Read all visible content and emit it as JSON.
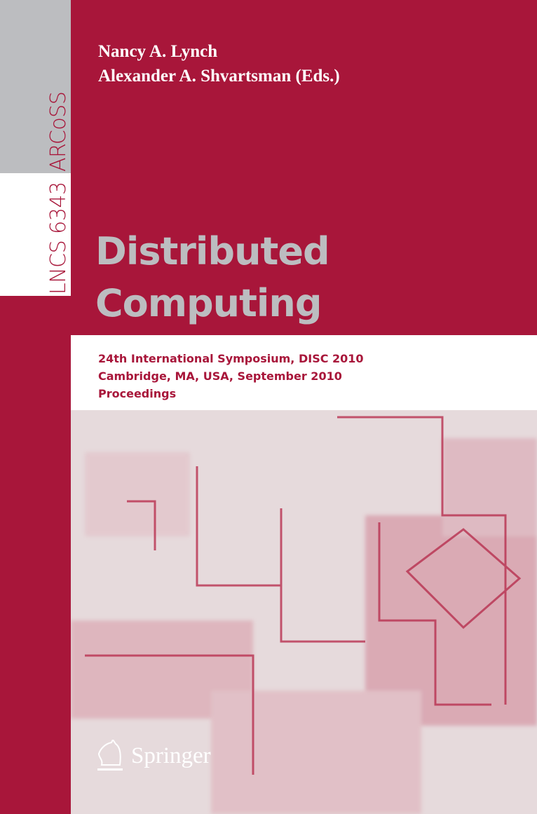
{
  "series_strip": {
    "arcoss": "ARCoSS",
    "lncs": "LNCS 6343"
  },
  "editors": [
    "Nancy A. Lynch",
    "Alexander A. Shvartsman (Eds.)"
  ],
  "title": [
    "Distributed",
    "Computing"
  ],
  "subtitle": [
    "24th International Symposium, DISC 2010",
    "Cambridge, MA, USA, September 2010",
    "Proceedings"
  ],
  "publisher": {
    "name": "Springer",
    "logo_icon": "knight-horse-icon"
  },
  "colors": {
    "crimson": "#a8163a",
    "gray": "#bcbdc0",
    "white": "#ffffff"
  }
}
